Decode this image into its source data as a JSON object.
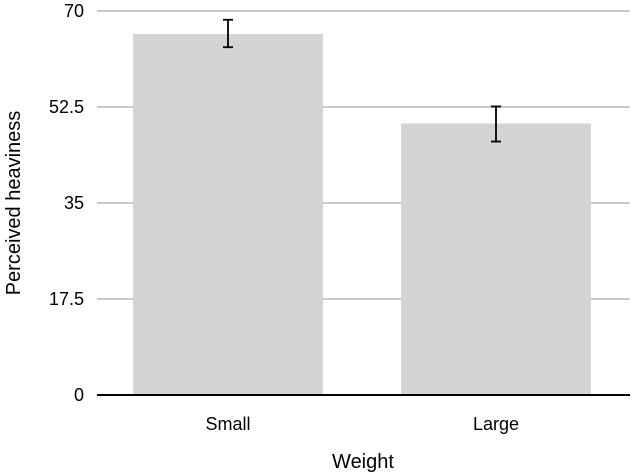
{
  "chart_data": {
    "type": "bar",
    "title": "",
    "xlabel": "Weight",
    "ylabel": "Perceived heaviness",
    "categories": [
      "Small",
      "Large"
    ],
    "values": [
      65.8,
      49.5
    ],
    "error": [
      {
        "low": 63.4,
        "high": 68.4
      },
      {
        "low": 46.2,
        "high": 52.6
      }
    ],
    "ylim": [
      0,
      70
    ],
    "yticks": [
      0,
      17.5,
      35,
      52.5,
      70
    ],
    "ytick_labels": [
      "0",
      "17.5",
      "35",
      "52.5",
      "70"
    ],
    "grid": true,
    "legend": "none",
    "colors": {
      "bar": "#d4d4d4",
      "grid": "#b8b8b8",
      "axis": "#000000",
      "error": "#000000"
    }
  }
}
